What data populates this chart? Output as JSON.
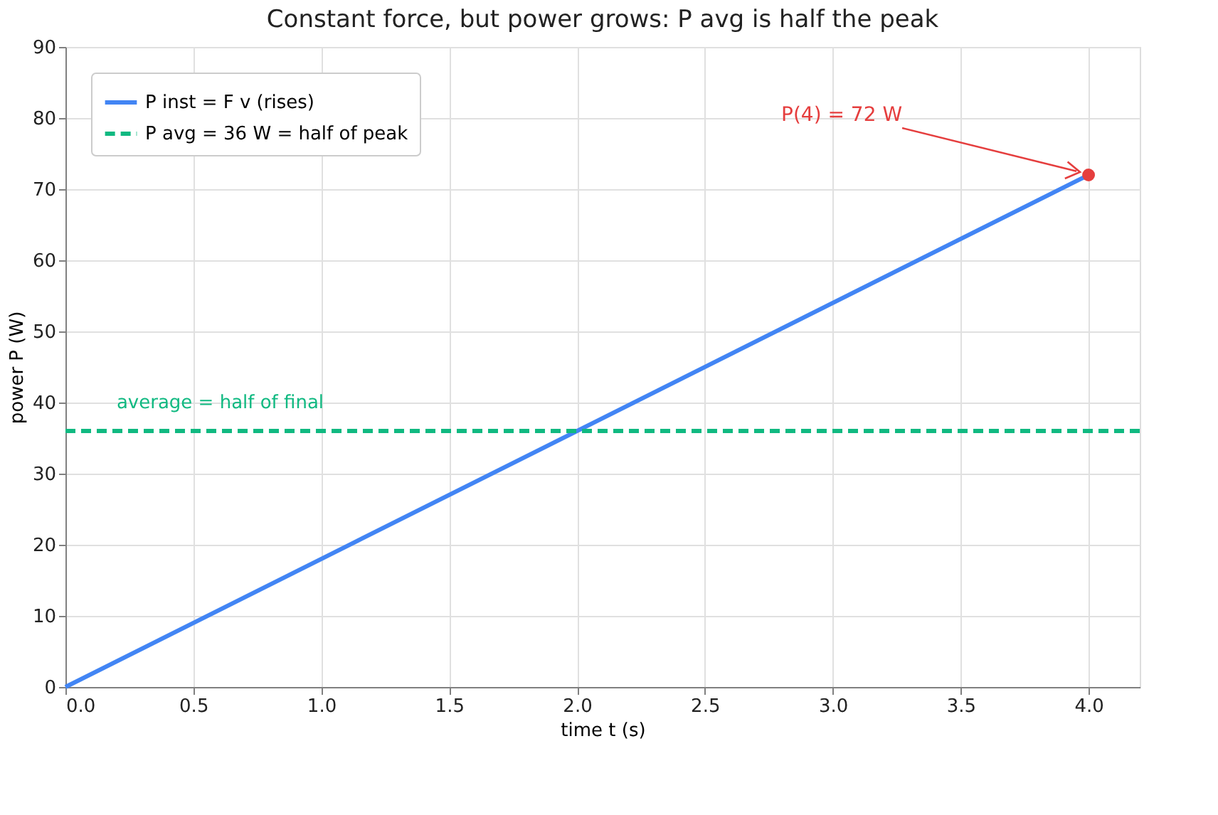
{
  "chart_data": {
    "type": "line",
    "title": "Constant force, but power grows: P avg is half the peak",
    "xlabel": "time t (s)",
    "ylabel": "power P (W)",
    "xlim": [
      0,
      4.2
    ],
    "ylim": [
      0,
      90
    ],
    "xticks": [
      {
        "value": 0,
        "label": "0.0"
      },
      0.5,
      {
        "value": 1,
        "label": "1.0"
      },
      1.5,
      {
        "value": 2,
        "label": "2.0"
      },
      2.5,
      {
        "value": 3,
        "label": "3.0"
      },
      3.5,
      {
        "value": 4,
        "label": "4.0"
      }
    ],
    "yticks": [
      0,
      10,
      20,
      30,
      40,
      50,
      60,
      70,
      80,
      90
    ],
    "grid": true,
    "legend": "top left",
    "series": [
      {
        "name": "P inst = F v  (rises)",
        "color": "#4285f4",
        "x": [
          0,
          4
        ],
        "values": [
          0,
          72
        ],
        "line_style": "solid"
      },
      {
        "name": "P avg = 36 W = half of peak",
        "color": "#10b981",
        "x": [
          0,
          4.2
        ],
        "values": [
          36,
          36
        ],
        "line_style": "dashed"
      },
      {
        "type": "scatter",
        "color": "#e53e3e",
        "x": [
          4
        ],
        "values": [
          72
        ],
        "marker": "circle"
      }
    ],
    "annotations": [
      {
        "text": "average = half of final",
        "x": 0.2,
        "y": 36
      },
      "P(4) = 72 W"
    ]
  }
}
